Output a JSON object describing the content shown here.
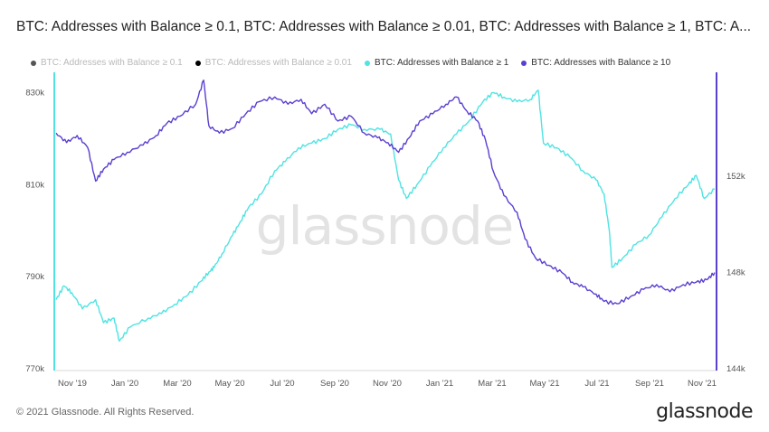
{
  "title": "BTC: Addresses with Balance ≥ 0.1, BTC: Addresses with Balance ≥ 0.01, BTC: Addresses with Balance ≥ 1, BTC: A...",
  "watermark": "glassnode",
  "footer": {
    "copyright": "© 2021 Glassnode. All Rights Reserved.",
    "logo": "glassnode"
  },
  "colors": {
    "gte_0_1": "#555555",
    "gte_0_01": "#000000",
    "gte_1": "#4fe3e3",
    "gte_10": "#5b3fd0"
  },
  "chart_data": {
    "type": "line",
    "title": "BTC: Addresses with Balance ≥ 0.1, BTC: Addresses with Balance ≥ 0.01, BTC: Addresses with Balance ≥ 1, BTC: A...",
    "legend": [
      {
        "name": "BTC: Addresses with Balance ≥ 0.1",
        "visible": false
      },
      {
        "name": "BTC: Addresses with Balance ≥ 0.01",
        "visible": false
      },
      {
        "name": "BTC: Addresses with Balance ≥ 1",
        "visible": true
      },
      {
        "name": "BTC: Addresses with Balance ≥ 10",
        "visible": true
      }
    ],
    "x_ticks": [
      "Nov '19",
      "Jan '20",
      "Mar '20",
      "May '20",
      "Jul '20",
      "Sep '20",
      "Nov '20",
      "Jan '21",
      "Mar '21",
      "May '21",
      "Jul '21",
      "Sep '21",
      "Nov '21"
    ],
    "y_left": {
      "ticks": [
        "770k",
        "790k",
        "810k",
        "830k"
      ],
      "range": [
        770000,
        834000
      ],
      "series": "BTC: Addresses with Balance ≥ 1"
    },
    "y_right": {
      "ticks": [
        "144k",
        "148k",
        "152k"
      ],
      "range": [
        144000,
        156250
      ],
      "series": "BTC: Addresses with Balance ≥ 10"
    },
    "x_range": [
      0,
      25
    ],
    "series": [
      {
        "name": "BTC: Addresses with Balance ≥ 1",
        "axis": "left",
        "points": [
          [
            0,
            785000
          ],
          [
            0.3,
            788000
          ],
          [
            0.6,
            786500
          ],
          [
            1,
            783000
          ],
          [
            1.5,
            785000
          ],
          [
            1.8,
            780000
          ],
          [
            2.2,
            781000
          ],
          [
            2.4,
            776000
          ],
          [
            2.8,
            779000
          ],
          [
            3.5,
            781000
          ],
          [
            4,
            782000
          ],
          [
            4.5,
            784000
          ],
          [
            5,
            786000
          ],
          [
            5.5,
            789000
          ],
          [
            5.8,
            791000
          ],
          [
            6,
            792000
          ],
          [
            6.3,
            795000
          ],
          [
            6.7,
            799000
          ],
          [
            7,
            802000
          ],
          [
            7.3,
            805000
          ],
          [
            7.8,
            808000
          ],
          [
            8.3,
            813000
          ],
          [
            8.7,
            815000
          ],
          [
            9.2,
            818000
          ],
          [
            9.7,
            819000
          ],
          [
            10.2,
            820000
          ],
          [
            10.7,
            822000
          ],
          [
            11.2,
            823000
          ],
          [
            11.7,
            822000
          ],
          [
            12.3,
            822000
          ],
          [
            12.7,
            821000
          ],
          [
            13,
            811000
          ],
          [
            13.3,
            807000
          ],
          [
            13.7,
            810000
          ],
          [
            14.2,
            814000
          ],
          [
            14.7,
            818000
          ],
          [
            15.2,
            821000
          ],
          [
            15.7,
            824000
          ],
          [
            16.2,
            828000
          ],
          [
            16.6,
            830000
          ],
          [
            17,
            829000
          ],
          [
            17.5,
            828000
          ],
          [
            18,
            828500
          ],
          [
            18.3,
            830500
          ],
          [
            18.5,
            819000
          ],
          [
            19,
            818000
          ],
          [
            19.5,
            816000
          ],
          [
            20,
            813000
          ],
          [
            20.5,
            811000
          ],
          [
            20.8,
            808000
          ],
          [
            21,
            800000
          ],
          [
            21.1,
            792000
          ],
          [
            21.5,
            794000
          ],
          [
            22,
            797000
          ],
          [
            22.5,
            799000
          ],
          [
            23,
            803000
          ],
          [
            23.5,
            807000
          ],
          [
            24,
            810000
          ],
          [
            24.3,
            812000
          ],
          [
            24.6,
            807000
          ],
          [
            25,
            809000
          ]
        ]
      },
      {
        "name": "BTC: Addresses with Balance ≥ 10",
        "axis": "right",
        "points": [
          [
            0,
            153800
          ],
          [
            0.4,
            153400
          ],
          [
            0.8,
            153700
          ],
          [
            1.2,
            153200
          ],
          [
            1.5,
            151800
          ],
          [
            1.8,
            152300
          ],
          [
            2.2,
            152700
          ],
          [
            2.7,
            153000
          ],
          [
            3.3,
            153300
          ],
          [
            3.8,
            153700
          ],
          [
            4.2,
            154200
          ],
          [
            4.7,
            154500
          ],
          [
            5.3,
            155000
          ],
          [
            5.6,
            156000
          ],
          [
            5.8,
            154100
          ],
          [
            6.2,
            153800
          ],
          [
            6.7,
            154000
          ],
          [
            7.2,
            154600
          ],
          [
            7.7,
            155100
          ],
          [
            8.3,
            155300
          ],
          [
            8.8,
            155000
          ],
          [
            9.3,
            155200
          ],
          [
            9.7,
            154600
          ],
          [
            10.2,
            155000
          ],
          [
            10.7,
            154300
          ],
          [
            11.2,
            154500
          ],
          [
            11.7,
            153800
          ],
          [
            12.2,
            153600
          ],
          [
            12.6,
            153400
          ],
          [
            13,
            153000
          ],
          [
            13.4,
            153600
          ],
          [
            13.8,
            154300
          ],
          [
            14.3,
            154600
          ],
          [
            14.8,
            155000
          ],
          [
            15.2,
            155300
          ],
          [
            15.6,
            154700
          ],
          [
            16,
            154300
          ],
          [
            16.3,
            153500
          ],
          [
            16.6,
            152200
          ],
          [
            17,
            151200
          ],
          [
            17.5,
            150500
          ],
          [
            17.8,
            149400
          ],
          [
            18.2,
            148600
          ],
          [
            18.7,
            148300
          ],
          [
            19.2,
            148000
          ],
          [
            19.6,
            147600
          ],
          [
            20,
            147400
          ],
          [
            20.5,
            147100
          ],
          [
            20.8,
            146800
          ],
          [
            21.3,
            146700
          ],
          [
            21.8,
            147000
          ],
          [
            22.3,
            147300
          ],
          [
            22.8,
            147500
          ],
          [
            23.3,
            147200
          ],
          [
            23.8,
            147500
          ],
          [
            24.3,
            147600
          ],
          [
            24.7,
            147700
          ],
          [
            25,
            148000
          ]
        ]
      }
    ]
  }
}
